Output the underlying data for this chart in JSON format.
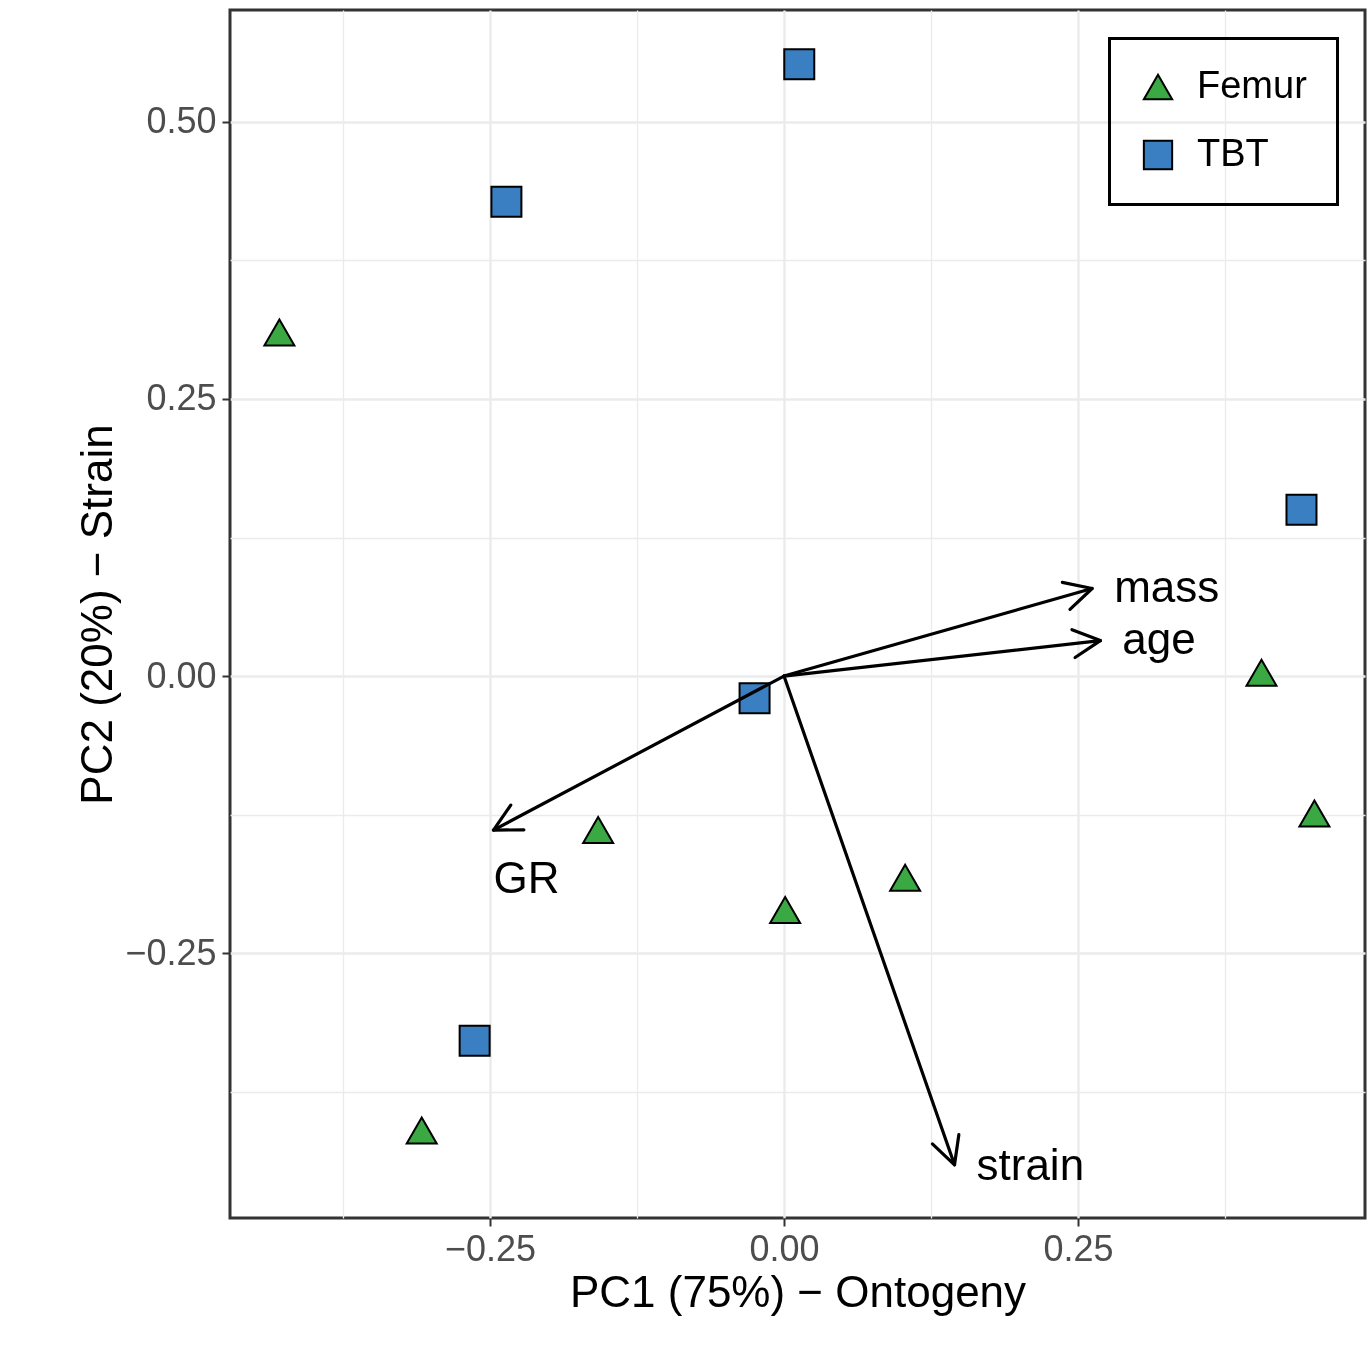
{
  "chart_data": {
    "type": "scatter",
    "xlabel": "PC1 (75%) − Ontogeny",
    "ylabel": "PC2 (20%) − Strain",
    "xlim": [
      -0.471,
      0.494
    ],
    "ylim": [
      -0.489,
      0.601
    ],
    "xticks": [
      {
        "value": -0.375,
        "label": null
      },
      {
        "value": -0.25,
        "label": "−0.25"
      },
      {
        "value": -0.125,
        "label": null
      },
      {
        "value": 0,
        "label": "0.00"
      },
      {
        "value": 0.125,
        "label": null
      },
      {
        "value": 0.25,
        "label": "0.25"
      },
      {
        "value": 0.375,
        "label": null
      }
    ],
    "yticks": [
      {
        "value": -0.375,
        "label": null
      },
      {
        "value": -0.25,
        "label": "−0.25"
      },
      {
        "value": -0.125,
        "label": null
      },
      {
        "value": 0,
        "label": "0.00"
      },
      {
        "value": 0.125,
        "label": null
      },
      {
        "value": 0.25,
        "label": "0.25"
      },
      {
        "value": 0.375,
        "label": null
      },
      {
        "value": 0.5,
        "label": "0.50"
      }
    ],
    "grid": true,
    "legend": "top right",
    "series": [
      {
        "name": "Femur",
        "color": "#3aa843",
        "marker": "triangle",
        "x": [
          -0.429,
          -0.158,
          0.001,
          0.103,
          0.406,
          0.451,
          -0.308
        ],
        "values": [
          0.31,
          -0.139,
          -0.211,
          -0.182,
          0.003,
          -0.124,
          -0.41
        ]
      },
      {
        "name": "TBT",
        "color": "#3a7fc1",
        "marker": "square",
        "x": [
          0.013,
          -0.236,
          0.44,
          -0.025,
          -0.263
        ],
        "values": [
          0.552,
          0.428,
          0.15,
          -0.02,
          -0.329
        ]
      },
      {
        "name": "mass",
        "type": "line",
        "color": "#000000",
        "x": [
          0,
          0.262
        ],
        "values": [
          0,
          0.079
        ]
      },
      {
        "name": "age",
        "type": "line",
        "color": "#000000",
        "x": [
          0,
          0.269
        ],
        "values": [
          0,
          0.032
        ]
      },
      {
        "name": "GR",
        "type": "line",
        "color": "#000000",
        "x": [
          0,
          -0.247
        ],
        "values": [
          0,
          -0.139
        ]
      },
      {
        "name": "strain",
        "type": "line",
        "color": "#000000",
        "x": [
          0,
          0.145
        ],
        "values": [
          0,
          -0.441
        ]
      }
    ]
  }
}
